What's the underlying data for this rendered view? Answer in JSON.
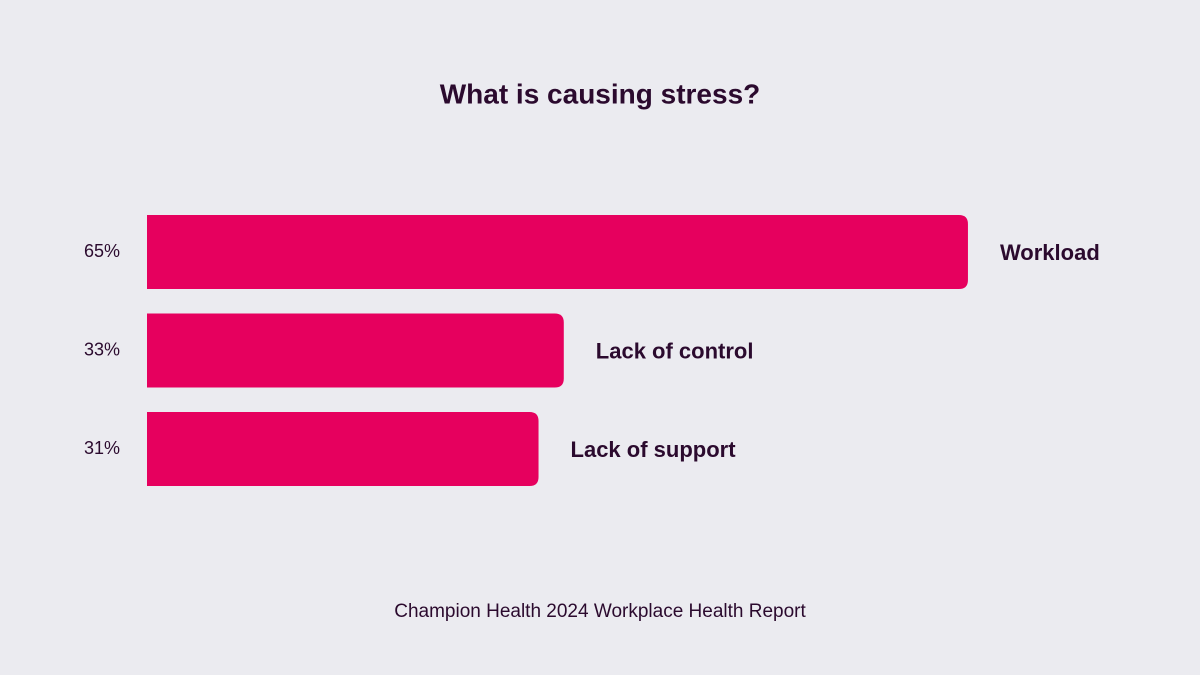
{
  "chart_data": {
    "type": "bar",
    "orientation": "horizontal",
    "title": "What is causing stress?",
    "categories": [
      "Workload",
      "Lack of control",
      "Lack of support"
    ],
    "values": [
      65,
      33,
      31
    ],
    "value_labels": [
      "65%",
      "33%",
      "31%"
    ],
    "color": "#e6005e",
    "source": "Champion Health 2024 Workplace Health Report"
  }
}
